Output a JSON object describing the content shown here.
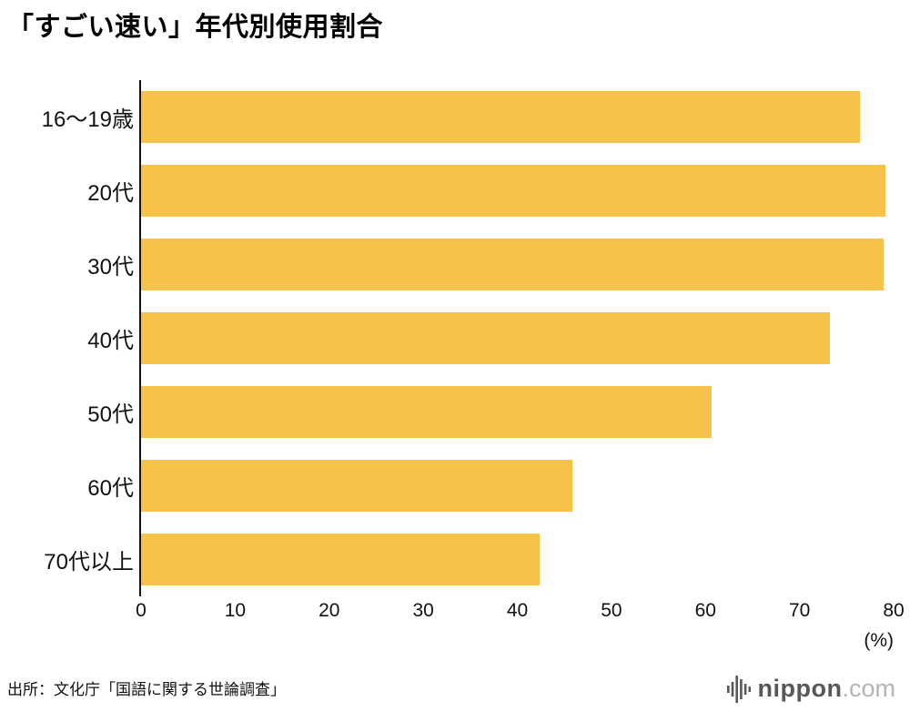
{
  "title": "「すごい速い」年代別使用割合",
  "source": "出所：文化庁「国語に関する世論調査」",
  "unit": "(%)",
  "logo": {
    "name": "nippon",
    "tld": ".com",
    "icon": "soundwave-bars-icon"
  },
  "colors": {
    "bar": "#f6c24a",
    "axis": "#111111",
    "logo_gray": "#595757",
    "logo_light": "#b5b5b6"
  },
  "chart_data": {
    "type": "bar",
    "orientation": "horizontal",
    "title": "「すごい速い」年代別使用割合",
    "categories": [
      "16〜19歳",
      "20代",
      "30代",
      "40代",
      "50代",
      "60代",
      "70代以上"
    ],
    "values": [
      76.4,
      79.1,
      78.9,
      73.2,
      60.7,
      45.9,
      42.4
    ],
    "xlabel": "(%)",
    "ylabel": "",
    "xlim": [
      0,
      80
    ],
    "xticks": [
      0,
      10,
      20,
      30,
      40,
      50,
      60,
      70,
      80
    ],
    "grid": false,
    "legend": false,
    "bar_color": "#f6c24a"
  }
}
